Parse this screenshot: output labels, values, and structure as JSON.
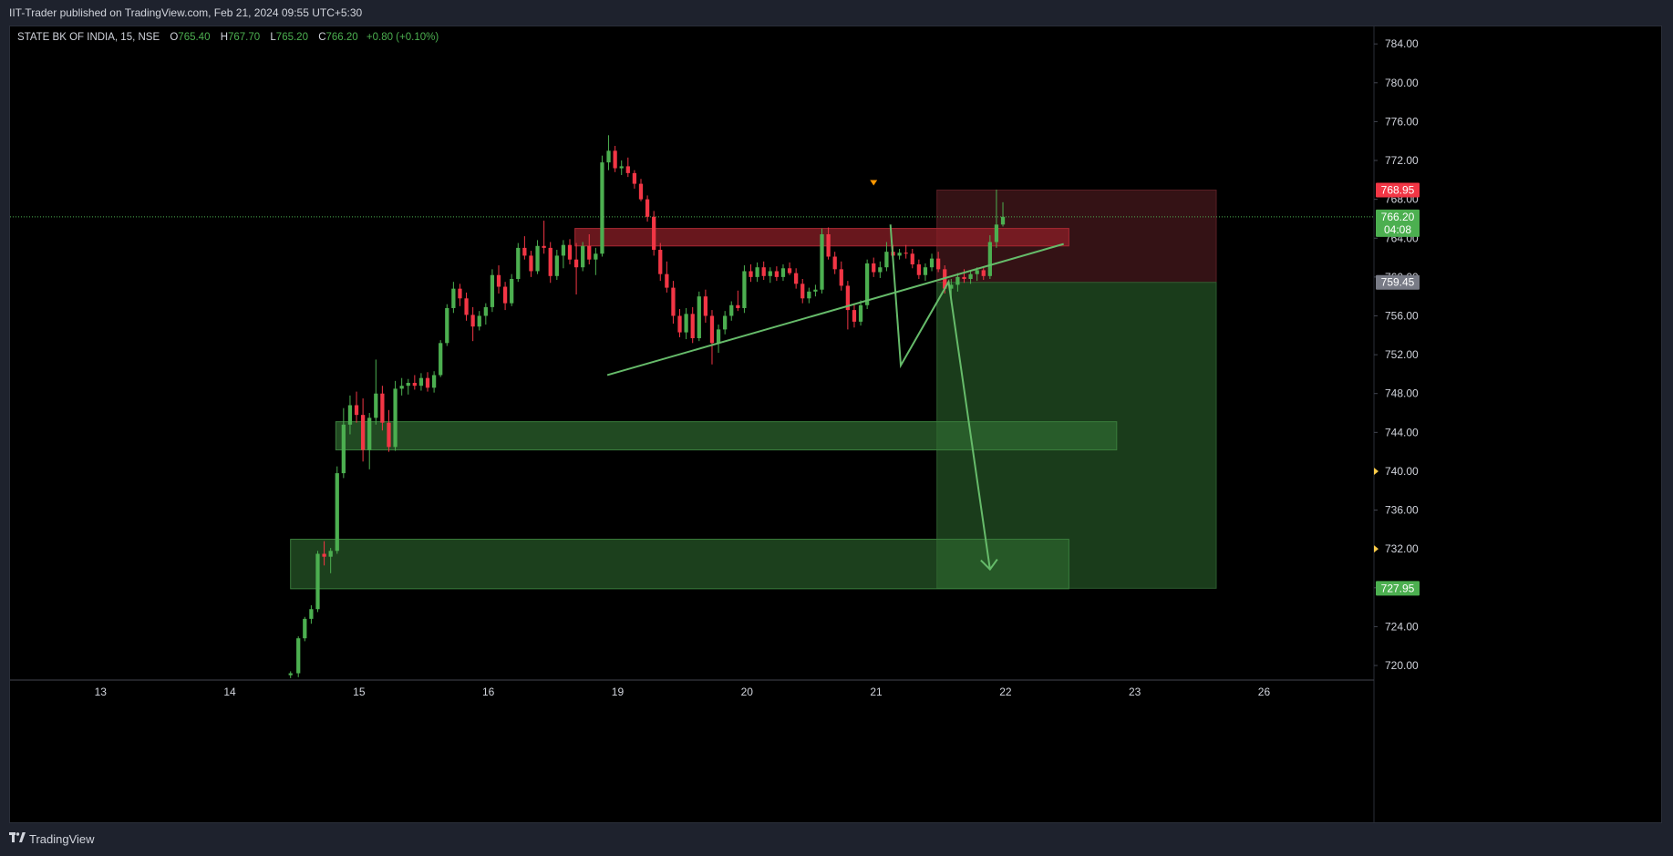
{
  "header": {
    "publisher_line": "IIT-Trader published on TradingView.com, Feb 21, 2024 09:55 UTC+5:30"
  },
  "footer": {
    "brand": "TradingView",
    "logo_icon": "tradingview-logo-icon"
  },
  "legend": {
    "symbol": "STATE BK OF INDIA, 15, NSE",
    "o_label": "O",
    "o": "765.40",
    "h_label": "H",
    "h": "767.70",
    "l_label": "L",
    "l": "765.20",
    "c_label": "C",
    "c": "766.20",
    "change": "+0.80 (+0.10%)"
  },
  "colors": {
    "bull": "#4caf50",
    "bear": "#f23645",
    "line": "#66bb6a",
    "stop_zone": "#3d1519",
    "target_zone": "#1e4620",
    "supply_zone": "#8b1f27",
    "demand_zone": "#2f6a30"
  },
  "chart_data": {
    "type": "candlestick",
    "interval": "15",
    "ylim": [
      718.5,
      785.8
    ],
    "y_ticks": [
      "784.00",
      "780.00",
      "776.00",
      "772.00",
      "768.00",
      "764.00",
      "760.00",
      "756.00",
      "752.00",
      "748.00",
      "744.00",
      "740.00",
      "736.00",
      "732.00",
      "728.00",
      "724.00",
      "720.00"
    ],
    "x_labels": [
      "13",
      "14",
      "15",
      "16",
      "19",
      "20",
      "21",
      "22",
      "23",
      "26"
    ],
    "x_label_positions": [
      0,
      1,
      2,
      3,
      4,
      5,
      6,
      7,
      8,
      9
    ],
    "xlim": [
      -0.7,
      9.85
    ],
    "price_tags": [
      {
        "label": "768.95",
        "price": 768.95,
        "color": "#f23645"
      },
      {
        "label": "766.20",
        "sub": "04:08",
        "price": 766.2,
        "color": "#4caf50"
      },
      {
        "label": "759.45",
        "price": 759.45,
        "color": "#787b86"
      },
      {
        "label": "727.95",
        "price": 727.95,
        "color": "#4caf50"
      }
    ],
    "current_price": 766.2,
    "zones": [
      {
        "name": "supply",
        "x0": 3.67,
        "x1": 7.49,
        "y0": 763.2,
        "y1": 765.0
      },
      {
        "name": "demand-upper",
        "x0": 1.82,
        "x1": 7.86,
        "y0": 742.2,
        "y1": 745.1
      },
      {
        "name": "demand-lower",
        "x0": 1.47,
        "x1": 7.49,
        "y0": 727.9,
        "y1": 733.0
      },
      {
        "name": "stop",
        "x0": 6.47,
        "x1": 8.63,
        "y0": 759.45,
        "y1": 768.95
      },
      {
        "name": "target",
        "x0": 6.47,
        "x1": 8.63,
        "y0": 727.95,
        "y1": 759.45
      }
    ],
    "trendlines": [
      {
        "x0": 3.92,
        "y0": 749.9,
        "x1": 7.45,
        "y1": 763.4
      }
    ],
    "projection": [
      {
        "x": 6.11,
        "y": 765.4
      },
      {
        "x": 6.19,
        "y": 750.9
      },
      {
        "x": 6.56,
        "y": 759.5
      },
      {
        "x": 6.88,
        "y": 729.9
      }
    ],
    "arrow_tip": {
      "x": 6.88,
      "y": 729.9
    },
    "marker": {
      "x": 5.98,
      "y": 769.7
    },
    "candles": [
      {
        "x": 1.47,
        "o": 719.0,
        "h": 719.4,
        "l": 718.7,
        "c": 719.2
      },
      {
        "x": 1.53,
        "o": 719.2,
        "h": 723.0,
        "l": 718.8,
        "c": 722.8
      },
      {
        "x": 1.58,
        "o": 722.8,
        "h": 725.0,
        "l": 722.5,
        "c": 724.8
      },
      {
        "x": 1.63,
        "o": 724.8,
        "h": 726.2,
        "l": 724.3,
        "c": 725.8
      },
      {
        "x": 1.68,
        "o": 725.8,
        "h": 731.8,
        "l": 725.5,
        "c": 731.5
      },
      {
        "x": 1.73,
        "o": 731.5,
        "h": 732.8,
        "l": 730.3,
        "c": 731.2
      },
      {
        "x": 1.78,
        "o": 731.2,
        "h": 732.1,
        "l": 729.5,
        "c": 731.8
      },
      {
        "x": 1.83,
        "o": 731.8,
        "h": 740.5,
        "l": 731.5,
        "c": 739.8
      },
      {
        "x": 1.88,
        "o": 739.8,
        "h": 746.5,
        "l": 739.3,
        "c": 744.8
      },
      {
        "x": 1.93,
        "o": 744.8,
        "h": 747.8,
        "l": 743.8,
        "c": 746.8
      },
      {
        "x": 1.98,
        "o": 746.8,
        "h": 748.2,
        "l": 745.0,
        "c": 745.8
      },
      {
        "x": 2.03,
        "o": 745.8,
        "h": 747.5,
        "l": 741.0,
        "c": 742.2
      },
      {
        "x": 2.08,
        "o": 742.2,
        "h": 746.0,
        "l": 740.2,
        "c": 745.5
      },
      {
        "x": 2.13,
        "o": 745.5,
        "h": 751.5,
        "l": 744.8,
        "c": 748.0
      },
      {
        "x": 2.18,
        "o": 748.0,
        "h": 748.8,
        "l": 744.2,
        "c": 745.0
      },
      {
        "x": 2.23,
        "o": 745.0,
        "h": 746.3,
        "l": 742.0,
        "c": 742.5
      },
      {
        "x": 2.28,
        "o": 742.5,
        "h": 749.3,
        "l": 742.1,
        "c": 748.5
      },
      {
        "x": 2.33,
        "o": 748.5,
        "h": 749.6,
        "l": 747.8,
        "c": 748.8
      },
      {
        "x": 2.38,
        "o": 748.8,
        "h": 749.5,
        "l": 747.9,
        "c": 749.1
      },
      {
        "x": 2.43,
        "o": 749.1,
        "h": 749.9,
        "l": 748.4,
        "c": 748.8
      },
      {
        "x": 2.48,
        "o": 748.8,
        "h": 750.1,
        "l": 748.3,
        "c": 749.6
      },
      {
        "x": 2.53,
        "o": 749.6,
        "h": 750.2,
        "l": 748.2,
        "c": 748.6
      },
      {
        "x": 2.58,
        "o": 748.6,
        "h": 750.3,
        "l": 748.1,
        "c": 749.9
      },
      {
        "x": 2.63,
        "o": 749.9,
        "h": 753.5,
        "l": 749.7,
        "c": 753.2
      },
      {
        "x": 2.68,
        "o": 753.2,
        "h": 757.2,
        "l": 752.9,
        "c": 756.8
      },
      {
        "x": 2.73,
        "o": 756.8,
        "h": 759.5,
        "l": 756.3,
        "c": 758.8
      },
      {
        "x": 2.78,
        "o": 758.8,
        "h": 759.3,
        "l": 757.0,
        "c": 757.8
      },
      {
        "x": 2.83,
        "o": 757.8,
        "h": 758.4,
        "l": 755.5,
        "c": 756.1
      },
      {
        "x": 2.88,
        "o": 756.1,
        "h": 756.9,
        "l": 753.4,
        "c": 754.9
      },
      {
        "x": 2.93,
        "o": 754.9,
        "h": 756.5,
        "l": 754.5,
        "c": 756.0
      },
      {
        "x": 2.98,
        "o": 756.0,
        "h": 757.3,
        "l": 755.1,
        "c": 756.9
      },
      {
        "x": 3.03,
        "o": 756.9,
        "h": 760.8,
        "l": 756.4,
        "c": 760.2
      },
      {
        "x": 3.08,
        "o": 760.2,
        "h": 761.2,
        "l": 758.3,
        "c": 759.0
      },
      {
        "x": 3.13,
        "o": 759.0,
        "h": 759.5,
        "l": 756.6,
        "c": 757.3
      },
      {
        "x": 3.18,
        "o": 757.3,
        "h": 760.3,
        "l": 757.0,
        "c": 759.8
      },
      {
        "x": 3.23,
        "o": 759.8,
        "h": 763.5,
        "l": 759.5,
        "c": 763.0
      },
      {
        "x": 3.28,
        "o": 763.0,
        "h": 764.2,
        "l": 761.8,
        "c": 762.2
      },
      {
        "x": 3.33,
        "o": 762.2,
        "h": 762.7,
        "l": 760.0,
        "c": 760.6
      },
      {
        "x": 3.38,
        "o": 760.6,
        "h": 763.8,
        "l": 760.3,
        "c": 763.2
      },
      {
        "x": 3.43,
        "o": 763.2,
        "h": 765.8,
        "l": 762.4,
        "c": 763.0
      },
      {
        "x": 3.48,
        "o": 763.0,
        "h": 763.6,
        "l": 759.4,
        "c": 760.1
      },
      {
        "x": 3.53,
        "o": 760.1,
        "h": 762.8,
        "l": 759.7,
        "c": 762.2
      },
      {
        "x": 3.58,
        "o": 762.2,
        "h": 763.8,
        "l": 760.9,
        "c": 763.3
      },
      {
        "x": 3.63,
        "o": 763.3,
        "h": 763.9,
        "l": 761.3,
        "c": 761.8
      },
      {
        "x": 3.68,
        "o": 761.8,
        "h": 763.5,
        "l": 758.2,
        "c": 761.0
      },
      {
        "x": 3.73,
        "o": 761.0,
        "h": 763.6,
        "l": 760.6,
        "c": 763.2
      },
      {
        "x": 3.78,
        "o": 763.2,
        "h": 764.4,
        "l": 761.3,
        "c": 761.8
      },
      {
        "x": 3.83,
        "o": 761.8,
        "h": 763.0,
        "l": 760.2,
        "c": 762.4
      },
      {
        "x": 3.88,
        "o": 762.4,
        "h": 772.5,
        "l": 762.1,
        "c": 771.8
      },
      {
        "x": 3.93,
        "o": 771.8,
        "h": 774.6,
        "l": 771.0,
        "c": 773.0
      },
      {
        "x": 3.98,
        "o": 773.0,
        "h": 773.5,
        "l": 770.8,
        "c": 771.2
      },
      {
        "x": 4.03,
        "o": 771.2,
        "h": 772.0,
        "l": 770.5,
        "c": 771.4
      },
      {
        "x": 4.08,
        "o": 771.4,
        "h": 772.3,
        "l": 770.3,
        "c": 770.7
      },
      {
        "x": 4.13,
        "o": 770.7,
        "h": 771.0,
        "l": 769.1,
        "c": 769.6
      },
      {
        "x": 4.18,
        "o": 769.6,
        "h": 770.1,
        "l": 767.8,
        "c": 768.0
      },
      {
        "x": 4.23,
        "o": 768.0,
        "h": 768.4,
        "l": 765.7,
        "c": 766.2
      },
      {
        "x": 4.28,
        "o": 766.2,
        "h": 766.8,
        "l": 762.2,
        "c": 762.8
      },
      {
        "x": 4.33,
        "o": 762.8,
        "h": 763.5,
        "l": 759.6,
        "c": 760.3
      },
      {
        "x": 4.38,
        "o": 760.3,
        "h": 761.6,
        "l": 758.4,
        "c": 758.9
      },
      {
        "x": 4.43,
        "o": 758.9,
        "h": 759.6,
        "l": 755.2,
        "c": 756.0
      },
      {
        "x": 4.48,
        "o": 756.0,
        "h": 756.7,
        "l": 753.8,
        "c": 754.3
      },
      {
        "x": 4.53,
        "o": 754.3,
        "h": 756.8,
        "l": 753.6,
        "c": 756.2
      },
      {
        "x": 4.58,
        "o": 756.2,
        "h": 756.9,
        "l": 753.2,
        "c": 753.7
      },
      {
        "x": 4.63,
        "o": 753.7,
        "h": 758.5,
        "l": 753.4,
        "c": 758.0
      },
      {
        "x": 4.68,
        "o": 758.0,
        "h": 758.7,
        "l": 755.3,
        "c": 756.0
      },
      {
        "x": 4.73,
        "o": 756.0,
        "h": 756.6,
        "l": 751.0,
        "c": 753.2
      },
      {
        "x": 4.78,
        "o": 753.2,
        "h": 755.1,
        "l": 752.2,
        "c": 754.6
      },
      {
        "x": 4.83,
        "o": 754.6,
        "h": 756.5,
        "l": 754.1,
        "c": 756.0
      },
      {
        "x": 4.88,
        "o": 756.0,
        "h": 757.5,
        "l": 755.5,
        "c": 757.1
      },
      {
        "x": 4.93,
        "o": 757.1,
        "h": 758.6,
        "l": 756.5,
        "c": 756.8
      },
      {
        "x": 4.98,
        "o": 756.8,
        "h": 761.2,
        "l": 756.3,
        "c": 760.6
      },
      {
        "x": 5.03,
        "o": 760.6,
        "h": 761.3,
        "l": 759.5,
        "c": 760.0
      },
      {
        "x": 5.08,
        "o": 760.0,
        "h": 761.5,
        "l": 759.5,
        "c": 761.0
      },
      {
        "x": 5.13,
        "o": 761.0,
        "h": 761.6,
        "l": 759.7,
        "c": 760.1
      },
      {
        "x": 5.18,
        "o": 760.1,
        "h": 761.0,
        "l": 759.4,
        "c": 760.6
      },
      {
        "x": 5.23,
        "o": 760.6,
        "h": 761.1,
        "l": 759.6,
        "c": 760.0
      },
      {
        "x": 5.28,
        "o": 760.0,
        "h": 761.3,
        "l": 759.6,
        "c": 760.9
      },
      {
        "x": 5.33,
        "o": 760.9,
        "h": 761.5,
        "l": 760.2,
        "c": 760.4
      },
      {
        "x": 5.38,
        "o": 760.4,
        "h": 760.9,
        "l": 758.8,
        "c": 759.3
      },
      {
        "x": 5.43,
        "o": 759.3,
        "h": 759.8,
        "l": 757.3,
        "c": 757.8
      },
      {
        "x": 5.48,
        "o": 757.8,
        "h": 758.9,
        "l": 757.3,
        "c": 758.5
      },
      {
        "x": 5.53,
        "o": 758.5,
        "h": 759.2,
        "l": 758.0,
        "c": 758.7
      },
      {
        "x": 5.58,
        "o": 758.7,
        "h": 765.0,
        "l": 758.3,
        "c": 764.4
      },
      {
        "x": 5.63,
        "o": 764.4,
        "h": 765.1,
        "l": 761.8,
        "c": 762.1
      },
      {
        "x": 5.68,
        "o": 762.1,
        "h": 762.6,
        "l": 760.3,
        "c": 760.8
      },
      {
        "x": 5.73,
        "o": 760.8,
        "h": 761.6,
        "l": 758.6,
        "c": 759.1
      },
      {
        "x": 5.78,
        "o": 759.1,
        "h": 759.6,
        "l": 754.6,
        "c": 756.6
      },
      {
        "x": 5.83,
        "o": 756.6,
        "h": 757.2,
        "l": 754.8,
        "c": 755.4
      },
      {
        "x": 5.88,
        "o": 755.4,
        "h": 757.6,
        "l": 755.0,
        "c": 757.1
      },
      {
        "x": 5.93,
        "o": 757.1,
        "h": 761.8,
        "l": 756.7,
        "c": 761.4
      },
      {
        "x": 5.98,
        "o": 761.4,
        "h": 762.0,
        "l": 760.0,
        "c": 760.5
      },
      {
        "x": 6.03,
        "o": 760.5,
        "h": 761.6,
        "l": 759.9,
        "c": 761.0
      },
      {
        "x": 6.08,
        "o": 761.0,
        "h": 763.6,
        "l": 760.6,
        "c": 762.6
      },
      {
        "x": 6.13,
        "o": 762.6,
        "h": 763.3,
        "l": 761.7,
        "c": 762.2
      },
      {
        "x": 6.18,
        "o": 762.2,
        "h": 762.9,
        "l": 761.8,
        "c": 762.5
      },
      {
        "x": 6.23,
        "o": 762.5,
        "h": 763.3,
        "l": 761.9,
        "c": 762.4
      },
      {
        "x": 6.28,
        "o": 762.4,
        "h": 762.9,
        "l": 760.9,
        "c": 761.3
      },
      {
        "x": 6.33,
        "o": 761.3,
        "h": 761.8,
        "l": 759.8,
        "c": 760.2
      },
      {
        "x": 6.38,
        "o": 760.2,
        "h": 761.4,
        "l": 759.6,
        "c": 761.0
      },
      {
        "x": 6.43,
        "o": 761.0,
        "h": 762.4,
        "l": 760.6,
        "c": 761.9
      },
      {
        "x": 6.48,
        "o": 761.9,
        "h": 762.6,
        "l": 760.5,
        "c": 760.8
      },
      {
        "x": 6.53,
        "o": 760.8,
        "h": 761.2,
        "l": 758.3,
        "c": 758.8
      },
      {
        "x": 6.58,
        "o": 758.8,
        "h": 759.8,
        "l": 757.3,
        "c": 759.2
      },
      {
        "x": 6.63,
        "o": 759.2,
        "h": 760.4,
        "l": 758.5,
        "c": 760.0
      },
      {
        "x": 6.68,
        "o": 760.0,
        "h": 760.8,
        "l": 759.4,
        "c": 759.8
      },
      {
        "x": 6.73,
        "o": 759.8,
        "h": 760.6,
        "l": 759.3,
        "c": 760.3
      },
      {
        "x": 6.78,
        "o": 760.3,
        "h": 761.0,
        "l": 759.6,
        "c": 760.7
      },
      {
        "x": 6.83,
        "o": 760.7,
        "h": 761.1,
        "l": 759.7,
        "c": 760.1
      },
      {
        "x": 6.88,
        "o": 760.1,
        "h": 764.3,
        "l": 759.8,
        "c": 763.6
      },
      {
        "x": 6.93,
        "o": 763.6,
        "h": 769.0,
        "l": 763.0,
        "c": 765.4
      },
      {
        "x": 6.98,
        "o": 765.4,
        "h": 767.7,
        "l": 765.2,
        "c": 766.2
      }
    ]
  }
}
